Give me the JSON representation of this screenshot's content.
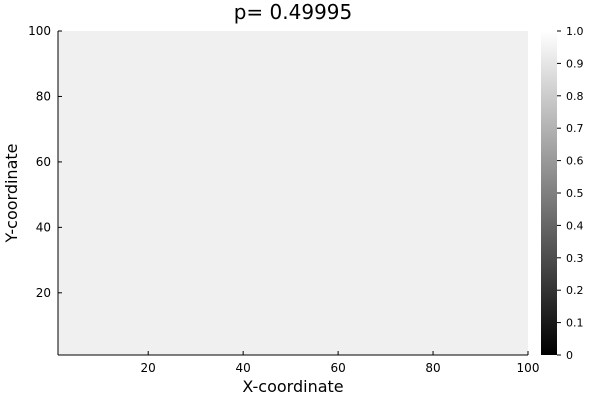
{
  "chart_data": {
    "type": "heatmap",
    "title": "p= 0.49995",
    "xlabel": "X-coordinate",
    "ylabel": "Y-coordinate",
    "xlim": [
      1,
      100
    ],
    "ylim": [
      1,
      100
    ],
    "x_ticks": [
      20,
      40,
      60,
      80,
      100
    ],
    "y_ticks": [
      20,
      40,
      60,
      80,
      100
    ],
    "x_tick_labels": [
      "20",
      "40",
      "60",
      "80",
      "100"
    ],
    "y_tick_labels": [
      "20",
      "40",
      "60",
      "80",
      "100"
    ],
    "grid": false,
    "uniform_value": 0.94,
    "colorbar": {
      "colormap": "grayscale",
      "min": 0,
      "max": 1,
      "ticks": [
        0,
        0.1,
        0.2,
        0.3,
        0.4,
        0.5,
        0.6,
        0.7,
        0.8,
        0.9,
        1.0
      ],
      "tick_labels": [
        "0",
        "0.1",
        "0.2",
        "0.3",
        "0.4",
        "0.5",
        "0.6",
        "0.7",
        "0.8",
        "0.9",
        "1.0"
      ],
      "min_color": "#000000",
      "max_color": "#ffffff"
    }
  }
}
